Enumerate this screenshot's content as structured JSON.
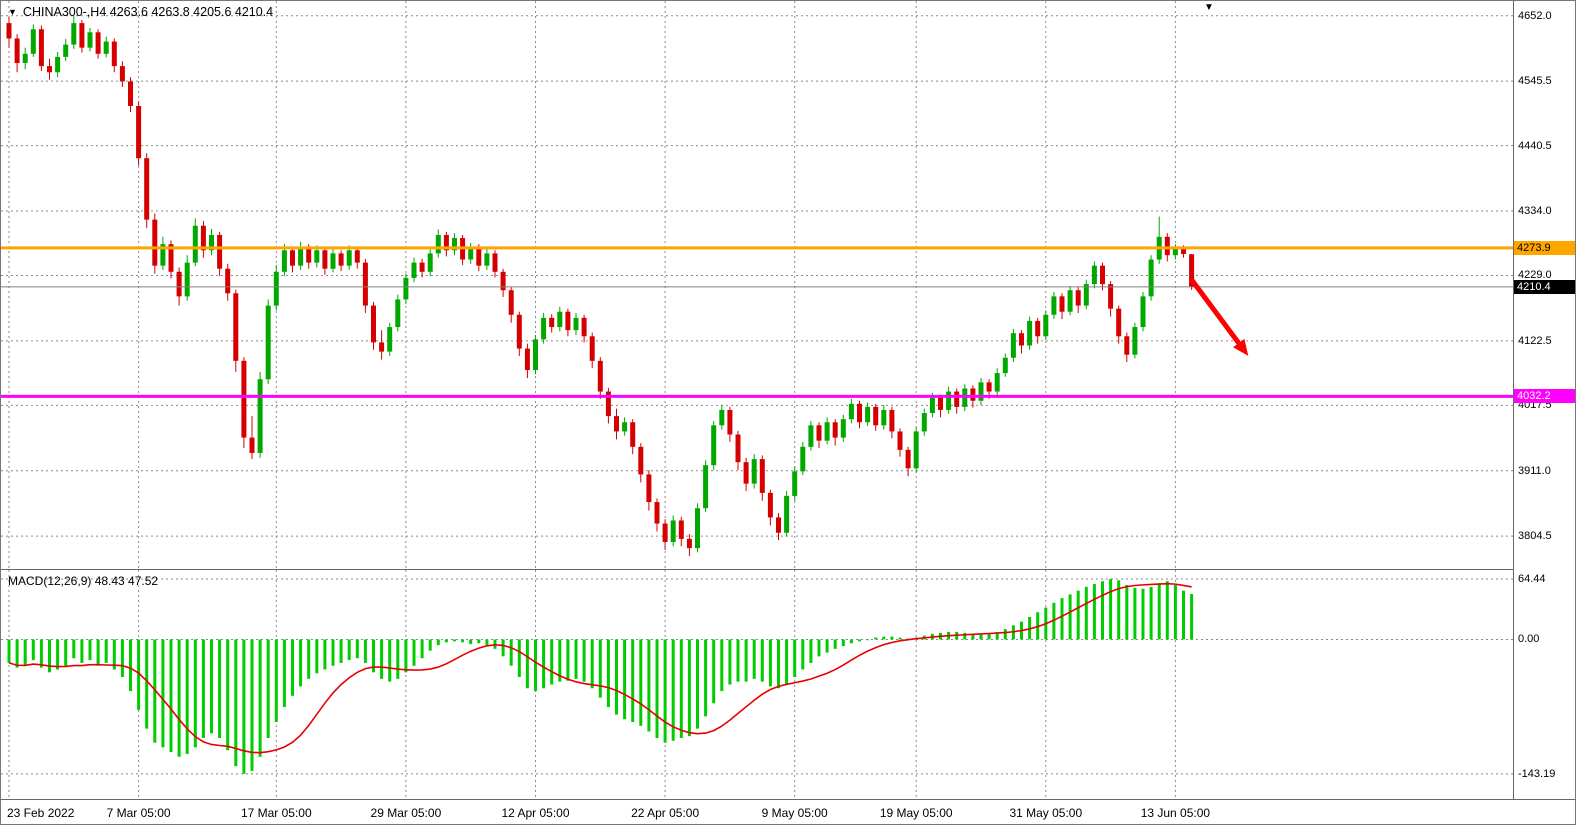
{
  "icons": {
    "one_click_toggle": "▼",
    "chart_shift": "▼"
  },
  "chart_data": {
    "type": "candlestick",
    "symbol": "CHINA300-",
    "timeframe": "H4",
    "title": "CHINA300-,H4 4263.6 4263.8 4205.6 4210.4",
    "current_candle": {
      "open": 4263.6,
      "high": 4263.8,
      "low": 4205.6,
      "close": 4210.4
    },
    "ylim": [
      3751,
      4676
    ],
    "grid": "dashed",
    "y_axis_labels": [
      "4652.0",
      "4545.5",
      "4440.5",
      "4334.0",
      "4229.0",
      "4122.5",
      "4017.5",
      "3911.0",
      "3804.5"
    ],
    "x_axis_labels": [
      "23 Feb 2022",
      "7 Mar 05:00",
      "17 Mar 05:00",
      "29 Mar 05:00",
      "12 Apr 05:00",
      "22 Apr 05:00",
      "9 May 05:00",
      "19 May 05:00",
      "31 May 05:00",
      "13 Jun 05:00"
    ],
    "x_label_indices": [
      0,
      16,
      33,
      49,
      65,
      81,
      97,
      112,
      128,
      144
    ],
    "colors": {
      "bull": "#00A800",
      "bear": "#D60000",
      "grid": "#8a8a8a",
      "macd_bar": "#00CC00",
      "macd_signal": "#E80000"
    },
    "hlines": [
      {
        "price": 4273.9,
        "label": "4273.9",
        "color": "#FFA500",
        "text_color": "#000000"
      },
      {
        "price": 4032.2,
        "label": "4032.2",
        "color": "#FF00FF",
        "text_color": "#FFFFFF"
      }
    ],
    "current_price": {
      "price": 4210.4,
      "label": "4210.4",
      "line_color": "#808080",
      "tag_bg": "#000000",
      "text_color": "#FFFFFF"
    },
    "arrow": {
      "from": {
        "index": 146,
        "price": 4222
      },
      "to": {
        "index": 153,
        "price": 4098
      },
      "color": "#FF0000"
    },
    "candles": [
      [
        4640,
        4650,
        4600,
        4615
      ],
      [
        4615,
        4622,
        4560,
        4575
      ],
      [
        4575,
        4600,
        4565,
        4590
      ],
      [
        4590,
        4638,
        4585,
        4630
      ],
      [
        4630,
        4636,
        4562,
        4570
      ],
      [
        4570,
        4582,
        4548,
        4560
      ],
      [
        4560,
        4593,
        4552,
        4585
      ],
      [
        4585,
        4614,
        4578,
        4605
      ],
      [
        4605,
        4652,
        4598,
        4640
      ],
      [
        4640,
        4645,
        4592,
        4600
      ],
      [
        4600,
        4632,
        4594,
        4625
      ],
      [
        4625,
        4630,
        4582,
        4590
      ],
      [
        4590,
        4618,
        4584,
        4610
      ],
      [
        4610,
        4615,
        4560,
        4570
      ],
      [
        4570,
        4578,
        4536,
        4545
      ],
      [
        4545,
        4552,
        4495,
        4505
      ],
      [
        4505,
        4512,
        4408,
        4420
      ],
      [
        4420,
        4428,
        4306,
        4320
      ],
      [
        4320,
        4330,
        4232,
        4245
      ],
      [
        4245,
        4292,
        4238,
        4280
      ],
      [
        4280,
        4286,
        4224,
        4235
      ],
      [
        4235,
        4242,
        4180,
        4195
      ],
      [
        4195,
        4262,
        4188,
        4250
      ],
      [
        4250,
        4322,
        4244,
        4310
      ],
      [
        4310,
        4318,
        4258,
        4270
      ],
      [
        4270,
        4305,
        4262,
        4295
      ],
      [
        4295,
        4300,
        4228,
        4240
      ],
      [
        4240,
        4248,
        4188,
        4200
      ],
      [
        4200,
        4206,
        4072,
        4090
      ],
      [
        4090,
        4096,
        3948,
        3965
      ],
      [
        3965,
        4000,
        3930,
        3940
      ],
      [
        3940,
        4072,
        3932,
        4060
      ],
      [
        4060,
        4190,
        4052,
        4180
      ],
      [
        4180,
        4246,
        4172,
        4235
      ],
      [
        4235,
        4280,
        4228,
        4270
      ],
      [
        4270,
        4276,
        4234,
        4245
      ],
      [
        4245,
        4284,
        4238,
        4275
      ],
      [
        4275,
        4280,
        4240,
        4250
      ],
      [
        4250,
        4278,
        4242,
        4270
      ],
      [
        4270,
        4276,
        4230,
        4240
      ],
      [
        4240,
        4272,
        4234,
        4265
      ],
      [
        4265,
        4270,
        4236,
        4245
      ],
      [
        4245,
        4278,
        4238,
        4270
      ],
      [
        4270,
        4276,
        4240,
        4250
      ],
      [
        4250,
        4256,
        4168,
        4180
      ],
      [
        4180,
        4186,
        4108,
        4120
      ],
      [
        4120,
        4140,
        4092,
        4105
      ],
      [
        4105,
        4152,
        4098,
        4145
      ],
      [
        4145,
        4198,
        4138,
        4190
      ],
      [
        4190,
        4232,
        4182,
        4225
      ],
      [
        4225,
        4258,
        4218,
        4250
      ],
      [
        4250,
        4256,
        4226,
        4235
      ],
      [
        4235,
        4272,
        4228,
        4265
      ],
      [
        4265,
        4304,
        4258,
        4295
      ],
      [
        4295,
        4300,
        4260,
        4270
      ],
      [
        4270,
        4298,
        4262,
        4290
      ],
      [
        4290,
        4295,
        4246,
        4255
      ],
      [
        4255,
        4282,
        4248,
        4275
      ],
      [
        4275,
        4280,
        4236,
        4245
      ],
      [
        4245,
        4272,
        4238,
        4265
      ],
      [
        4265,
        4270,
        4226,
        4235
      ],
      [
        4235,
        4240,
        4194,
        4205
      ],
      [
        4205,
        4210,
        4152,
        4165
      ],
      [
        4165,
        4170,
        4098,
        4110
      ],
      [
        4110,
        4118,
        4062,
        4075
      ],
      [
        4075,
        4132,
        4068,
        4125
      ],
      [
        4125,
        4168,
        4118,
        4160
      ],
      [
        4160,
        4166,
        4136,
        4145
      ],
      [
        4145,
        4178,
        4138,
        4170
      ],
      [
        4170,
        4175,
        4130,
        4140
      ],
      [
        4140,
        4168,
        4132,
        4160
      ],
      [
        4160,
        4165,
        4120,
        4130
      ],
      [
        4130,
        4136,
        4078,
        4090
      ],
      [
        4090,
        4096,
        4028,
        4040
      ],
      [
        4040,
        4046,
        3988,
        4000
      ],
      [
        4000,
        4012,
        3962,
        3975
      ],
      [
        3975,
        3998,
        3968,
        3990
      ],
      [
        3990,
        3995,
        3938,
        3950
      ],
      [
        3950,
        3956,
        3892,
        3905
      ],
      [
        3905,
        3912,
        3846,
        3860
      ],
      [
        3860,
        3866,
        3812,
        3825
      ],
      [
        3825,
        3832,
        3782,
        3795
      ],
      [
        3795,
        3838,
        3788,
        3830
      ],
      [
        3830,
        3836,
        3788,
        3800
      ],
      [
        3800,
        3808,
        3772,
        3785
      ],
      [
        3785,
        3858,
        3778,
        3850
      ],
      [
        3850,
        3928,
        3844,
        3920
      ],
      [
        3920,
        3992,
        3912,
        3985
      ],
      [
        3985,
        4018,
        3978,
        4010
      ],
      [
        4010,
        4015,
        3958,
        3970
      ],
      [
        3970,
        3976,
        3912,
        3925
      ],
      [
        3925,
        3932,
        3878,
        3890
      ],
      [
        3890,
        3938,
        3882,
        3930
      ],
      [
        3930,
        3936,
        3862,
        3875
      ],
      [
        3875,
        3880,
        3822,
        3835
      ],
      [
        3835,
        3842,
        3798,
        3810
      ],
      [
        3810,
        3878,
        3804,
        3870
      ],
      [
        3870,
        3918,
        3862,
        3910
      ],
      [
        3910,
        3958,
        3904,
        3950
      ],
      [
        3950,
        3992,
        3944,
        3985
      ],
      [
        3985,
        3990,
        3948,
        3960
      ],
      [
        3960,
        3998,
        3954,
        3990
      ],
      [
        3990,
        3995,
        3952,
        3965
      ],
      [
        3965,
        4002,
        3958,
        3995
      ],
      [
        3995,
        4028,
        3988,
        4020
      ],
      [
        4020,
        4025,
        3980,
        3990
      ],
      [
        3990,
        4022,
        3984,
        4015
      ],
      [
        4015,
        4020,
        3976,
        3985
      ],
      [
        3985,
        4018,
        3978,
        4010
      ],
      [
        4010,
        4015,
        3964,
        3975
      ],
      [
        3975,
        3980,
        3934,
        3945
      ],
      [
        3945,
        3950,
        3902,
        3915
      ],
      [
        3915,
        3982,
        3908,
        3975
      ],
      [
        3975,
        4012,
        3968,
        4005
      ],
      [
        4005,
        4038,
        3998,
        4030
      ],
      [
        4030,
        4035,
        3998,
        4010
      ],
      [
        4010,
        4048,
        4004,
        4040
      ],
      [
        4040,
        4045,
        4004,
        4015
      ],
      [
        4015,
        4052,
        4008,
        4045
      ],
      [
        4045,
        4050,
        4014,
        4025
      ],
      [
        4025,
        4062,
        4018,
        4055
      ],
      [
        4055,
        4060,
        4028,
        4040
      ],
      [
        4040,
        4078,
        4034,
        4070
      ],
      [
        4070,
        4102,
        4064,
        4095
      ],
      [
        4095,
        4142,
        4088,
        4135
      ],
      [
        4135,
        4140,
        4102,
        4115
      ],
      [
        4115,
        4162,
        4108,
        4155
      ],
      [
        4155,
        4160,
        4118,
        4130
      ],
      [
        4130,
        4172,
        4124,
        4165
      ],
      [
        4165,
        4202,
        4158,
        4195
      ],
      [
        4195,
        4200,
        4158,
        4170
      ],
      [
        4170,
        4212,
        4164,
        4205
      ],
      [
        4205,
        4210,
        4168,
        4180
      ],
      [
        4180,
        4222,
        4174,
        4215
      ],
      [
        4215,
        4252,
        4208,
        4245
      ],
      [
        4245,
        4250,
        4205,
        4215
      ],
      [
        4215,
        4220,
        4162,
        4175
      ],
      [
        4175,
        4180,
        4118,
        4130
      ],
      [
        4130,
        4136,
        4088,
        4100
      ],
      [
        4100,
        4152,
        4094,
        4145
      ],
      [
        4145,
        4202,
        4138,
        4195
      ],
      [
        4195,
        4262,
        4188,
        4255
      ],
      [
        4255,
        4325,
        4248,
        4292
      ],
      [
        4292,
        4298,
        4252,
        4262
      ],
      [
        4262,
        4280,
        4255,
        4272
      ],
      [
        4272,
        4278,
        4258,
        4264
      ],
      [
        4263.6,
        4263.8,
        4205.6,
        4210.4
      ]
    ],
    "macd": {
      "label": "MACD(12,26,9) 48.43 47.52",
      "current_main": 48.43,
      "current_signal": 47.52,
      "signal_period": 9,
      "ylim": [
        -170,
        74
      ],
      "y_axis_labels": [
        "64.44",
        "0.00",
        "-143.19"
      ],
      "main": [
        -25,
        -30,
        -28,
        -22,
        -30,
        -35,
        -32,
        -28,
        -20,
        -25,
        -22,
        -28,
        -25,
        -32,
        -40,
        -55,
        -75,
        -95,
        -110,
        -115,
        -120,
        -125,
        -122,
        -115,
        -105,
        -100,
        -105,
        -118,
        -135,
        -143.19,
        -140,
        -125,
        -105,
        -88,
        -72,
        -60,
        -50,
        -42,
        -36,
        -32,
        -28,
        -25,
        -22,
        -20,
        -25,
        -35,
        -42,
        -45,
        -42,
        -35,
        -28,
        -20,
        -12,
        -6,
        -3,
        -2,
        -3,
        -5,
        -4,
        -6,
        -10,
        -18,
        -28,
        -40,
        -52,
        -55,
        -52,
        -48,
        -45,
        -44,
        -42,
        -45,
        -52,
        -62,
        -72,
        -80,
        -85,
        -88,
        -92,
        -98,
        -105,
        -110,
        -108,
        -105,
        -103,
        -95,
        -82,
        -68,
        -55,
        -48,
        -45,
        -45,
        -42,
        -45,
        -50,
        -52,
        -48,
        -40,
        -32,
        -25,
        -18,
        -14,
        -10,
        -7,
        -4,
        -2,
        0,
        2,
        3,
        3,
        2,
        1,
        2,
        4,
        6,
        7,
        8,
        8,
        7,
        6,
        5,
        6,
        8,
        11,
        15,
        19,
        24,
        29,
        34,
        39,
        44,
        48,
        52,
        56,
        59,
        62,
        64.44,
        63,
        58,
        55,
        54,
        56,
        60,
        62,
        58,
        52,
        48.43
      ]
    }
  }
}
